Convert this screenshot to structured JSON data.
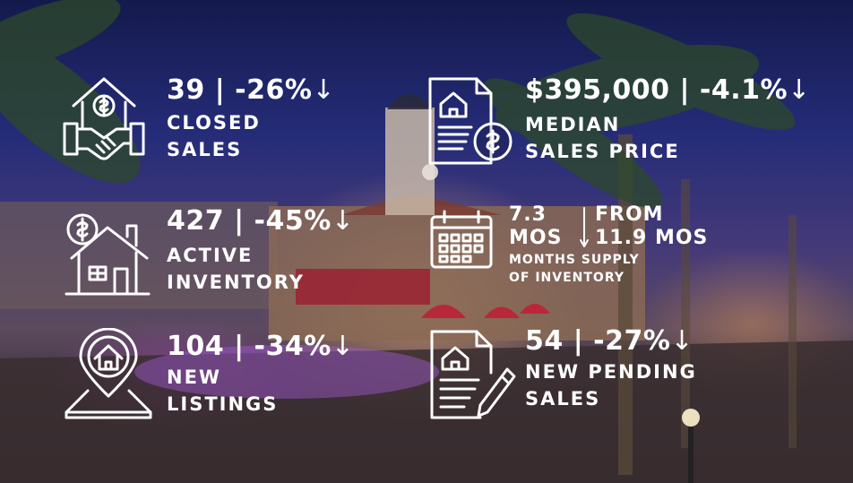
{
  "closed_sales": {
    "value": "39",
    "change": "-26%",
    "label_line1": "CLOSED",
    "label_line2": "SALES"
  },
  "median_price": {
    "value": "$395,000",
    "change": "-4.1%",
    "label_line1": "MEDIAN",
    "label_line2": "SALES PRICE"
  },
  "active_inventory": {
    "value": "427",
    "change": "-45%",
    "label_line1": "ACTIVE",
    "label_line2": "INVENTORY"
  },
  "months_supply": {
    "current": "7.3",
    "current_unit": "MOS",
    "from_label": "FROM",
    "previous": "11.9 MOS",
    "label_line1": "MONTHS SUPPLY",
    "label_line2": "OF INVENTORY"
  },
  "new_listings": {
    "value": "104",
    "change": "-34%",
    "label_line1": "NEW",
    "label_line2": "LISTINGS"
  },
  "new_pending": {
    "value": "54",
    "change": "-27%",
    "label_line1": "NEW PENDING",
    "label_line2": "SALES"
  },
  "separator": "|",
  "down_arrow": "↓",
  "colors": {
    "text": "#ffffff",
    "sky": "#252c78",
    "glow": "#ffbe6e"
  },
  "icons": [
    "house-dollar-handshake-icon",
    "document-house-dollar-icon",
    "house-dollar-sign-icon",
    "calendar-icon",
    "location-pin-house-icon",
    "document-pen-icon"
  ]
}
